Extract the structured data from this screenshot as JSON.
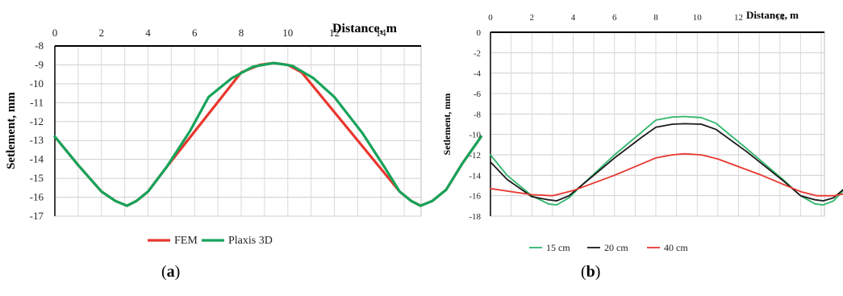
{
  "panels": {
    "a": {
      "label_open": "(",
      "label_letter": "a",
      "label_close": ")"
    },
    "b": {
      "label_open": "(",
      "label_letter": "b",
      "label_close": ")"
    }
  },
  "chart_data": [
    {
      "type": "line",
      "panel": "a",
      "xlabel": "Distance,  m",
      "ylabel": "Setlement, mm",
      "xlim": [
        0,
        17.5
      ],
      "ylim": [
        -17,
        -8
      ],
      "xticks": [
        0,
        2,
        4,
        6,
        8,
        10,
        12,
        14
      ],
      "yticks": [
        -8,
        -9,
        -10,
        -11,
        -12,
        -13,
        -14,
        -15,
        -16,
        -17
      ],
      "x_axis_position": "top",
      "grid": true,
      "legend_position": "bottom",
      "series": [
        {
          "name": "FEM",
          "color": "#e8372f",
          "points": [
            [
              0,
              -12.8
            ],
            [
              1,
              -14.3
            ],
            [
              2,
              -15.7
            ],
            [
              2.6,
              -16.2
            ],
            [
              3.1,
              -16.45
            ],
            [
              3.5,
              -16.2
            ],
            [
              4,
              -15.7
            ],
            [
              4.8,
              -14.4
            ],
            [
              8,
              -9.4
            ],
            [
              8.8,
              -9.0
            ],
            [
              9.4,
              -8.9
            ],
            [
              10,
              -9.0
            ],
            [
              10.6,
              -9.4
            ],
            [
              14,
              -14.5
            ],
            [
              14.8,
              -15.7
            ],
            [
              15.3,
              -16.2
            ],
            [
              15.7,
              -16.45
            ],
            [
              16.2,
              -16.2
            ],
            [
              16.8,
              -15.6
            ],
            [
              17.5,
              -14.2
            ],
            [
              18.3,
              -12.8
            ]
          ]
        },
        {
          "name": "Plaxis 3D",
          "color": "#17a35a",
          "points": [
            [
              0,
              -12.8
            ],
            [
              1,
              -14.3
            ],
            [
              2,
              -15.7
            ],
            [
              2.6,
              -16.2
            ],
            [
              3.1,
              -16.45
            ],
            [
              3.5,
              -16.2
            ],
            [
              4,
              -15.7
            ],
            [
              4.8,
              -14.4
            ],
            [
              5.8,
              -12.5
            ],
            [
              6.6,
              -10.7
            ],
            [
              7.6,
              -9.7
            ],
            [
              8.5,
              -9.1
            ],
            [
              9.4,
              -8.9
            ],
            [
              10.2,
              -9.05
            ],
            [
              11.1,
              -9.7
            ],
            [
              12,
              -10.7
            ],
            [
              13.2,
              -12.6
            ],
            [
              14.2,
              -14.5
            ],
            [
              14.8,
              -15.7
            ],
            [
              15.3,
              -16.2
            ],
            [
              15.7,
              -16.45
            ],
            [
              16.2,
              -16.2
            ],
            [
              16.8,
              -15.6
            ],
            [
              17.5,
              -14.2
            ],
            [
              18.3,
              -12.8
            ]
          ]
        }
      ]
    },
    {
      "type": "line",
      "panel": "b",
      "xlabel": "Distance,  m",
      "ylabel": "Setlement, mm",
      "xlim": [
        0,
        17.5
      ],
      "ylim": [
        -18,
        0
      ],
      "xticks": [
        0,
        2,
        4,
        6,
        8,
        10,
        12,
        14
      ],
      "yticks": [
        0,
        -2,
        -4,
        -6,
        -8,
        -10,
        -12,
        -14,
        -16,
        -18
      ],
      "x_axis_position": "top",
      "grid": true,
      "legend_position": "bottom",
      "series": [
        {
          "name": "15 cm",
          "color": "#2fb56a",
          "points": [
            [
              0,
              -12
            ],
            [
              0.8,
              -14
            ],
            [
              2,
              -16
            ],
            [
              2.8,
              -16.8
            ],
            [
              3.2,
              -16.9
            ],
            [
              3.8,
              -16.2
            ],
            [
              4.4,
              -15
            ],
            [
              6,
              -12
            ],
            [
              7.3,
              -9.8
            ],
            [
              8,
              -8.6
            ],
            [
              8.8,
              -8.3
            ],
            [
              9.4,
              -8.25
            ],
            [
              10.2,
              -8.35
            ],
            [
              10.9,
              -8.9
            ],
            [
              12.4,
              -11.4
            ],
            [
              14.2,
              -14.5
            ],
            [
              15,
              -16
            ],
            [
              15.7,
              -16.8
            ],
            [
              16.1,
              -16.9
            ],
            [
              16.6,
              -16.5
            ],
            [
              17.3,
              -15
            ],
            [
              18.2,
              -12
            ]
          ]
        },
        {
          "name": "20 cm",
          "color": "#1a1a1a",
          "points": [
            [
              0,
              -12.7
            ],
            [
              0.8,
              -14.4
            ],
            [
              2,
              -16.1
            ],
            [
              2.8,
              -16.4
            ],
            [
              3.2,
              -16.5
            ],
            [
              3.8,
              -16
            ],
            [
              4.4,
              -15
            ],
            [
              6,
              -12.3
            ],
            [
              7.3,
              -10.3
            ],
            [
              8,
              -9.3
            ],
            [
              8.8,
              -9
            ],
            [
              9.4,
              -8.95
            ],
            [
              10.2,
              -9
            ],
            [
              10.9,
              -9.5
            ],
            [
              12.4,
              -11.7
            ],
            [
              14.2,
              -14.6
            ],
            [
              15,
              -16
            ],
            [
              15.7,
              -16.4
            ],
            [
              16.1,
              -16.5
            ],
            [
              16.6,
              -16.2
            ],
            [
              17.3,
              -15
            ],
            [
              18.2,
              -12.7
            ]
          ]
        },
        {
          "name": "40 cm",
          "color": "#e8372f",
          "points": [
            [
              0,
              -15.3
            ],
            [
              1,
              -15.6
            ],
            [
              2,
              -15.9
            ],
            [
              3,
              -16
            ],
            [
              4,
              -15.5
            ],
            [
              6,
              -14
            ],
            [
              8,
              -12.3
            ],
            [
              8.8,
              -12
            ],
            [
              9.4,
              -11.9
            ],
            [
              10.2,
              -12
            ],
            [
              11,
              -12.4
            ],
            [
              13,
              -13.9
            ],
            [
              15,
              -15.6
            ],
            [
              15.8,
              -16
            ],
            [
              16.6,
              -16
            ],
            [
              17.4,
              -15.7
            ],
            [
              18.2,
              -15.3
            ]
          ]
        }
      ]
    }
  ]
}
